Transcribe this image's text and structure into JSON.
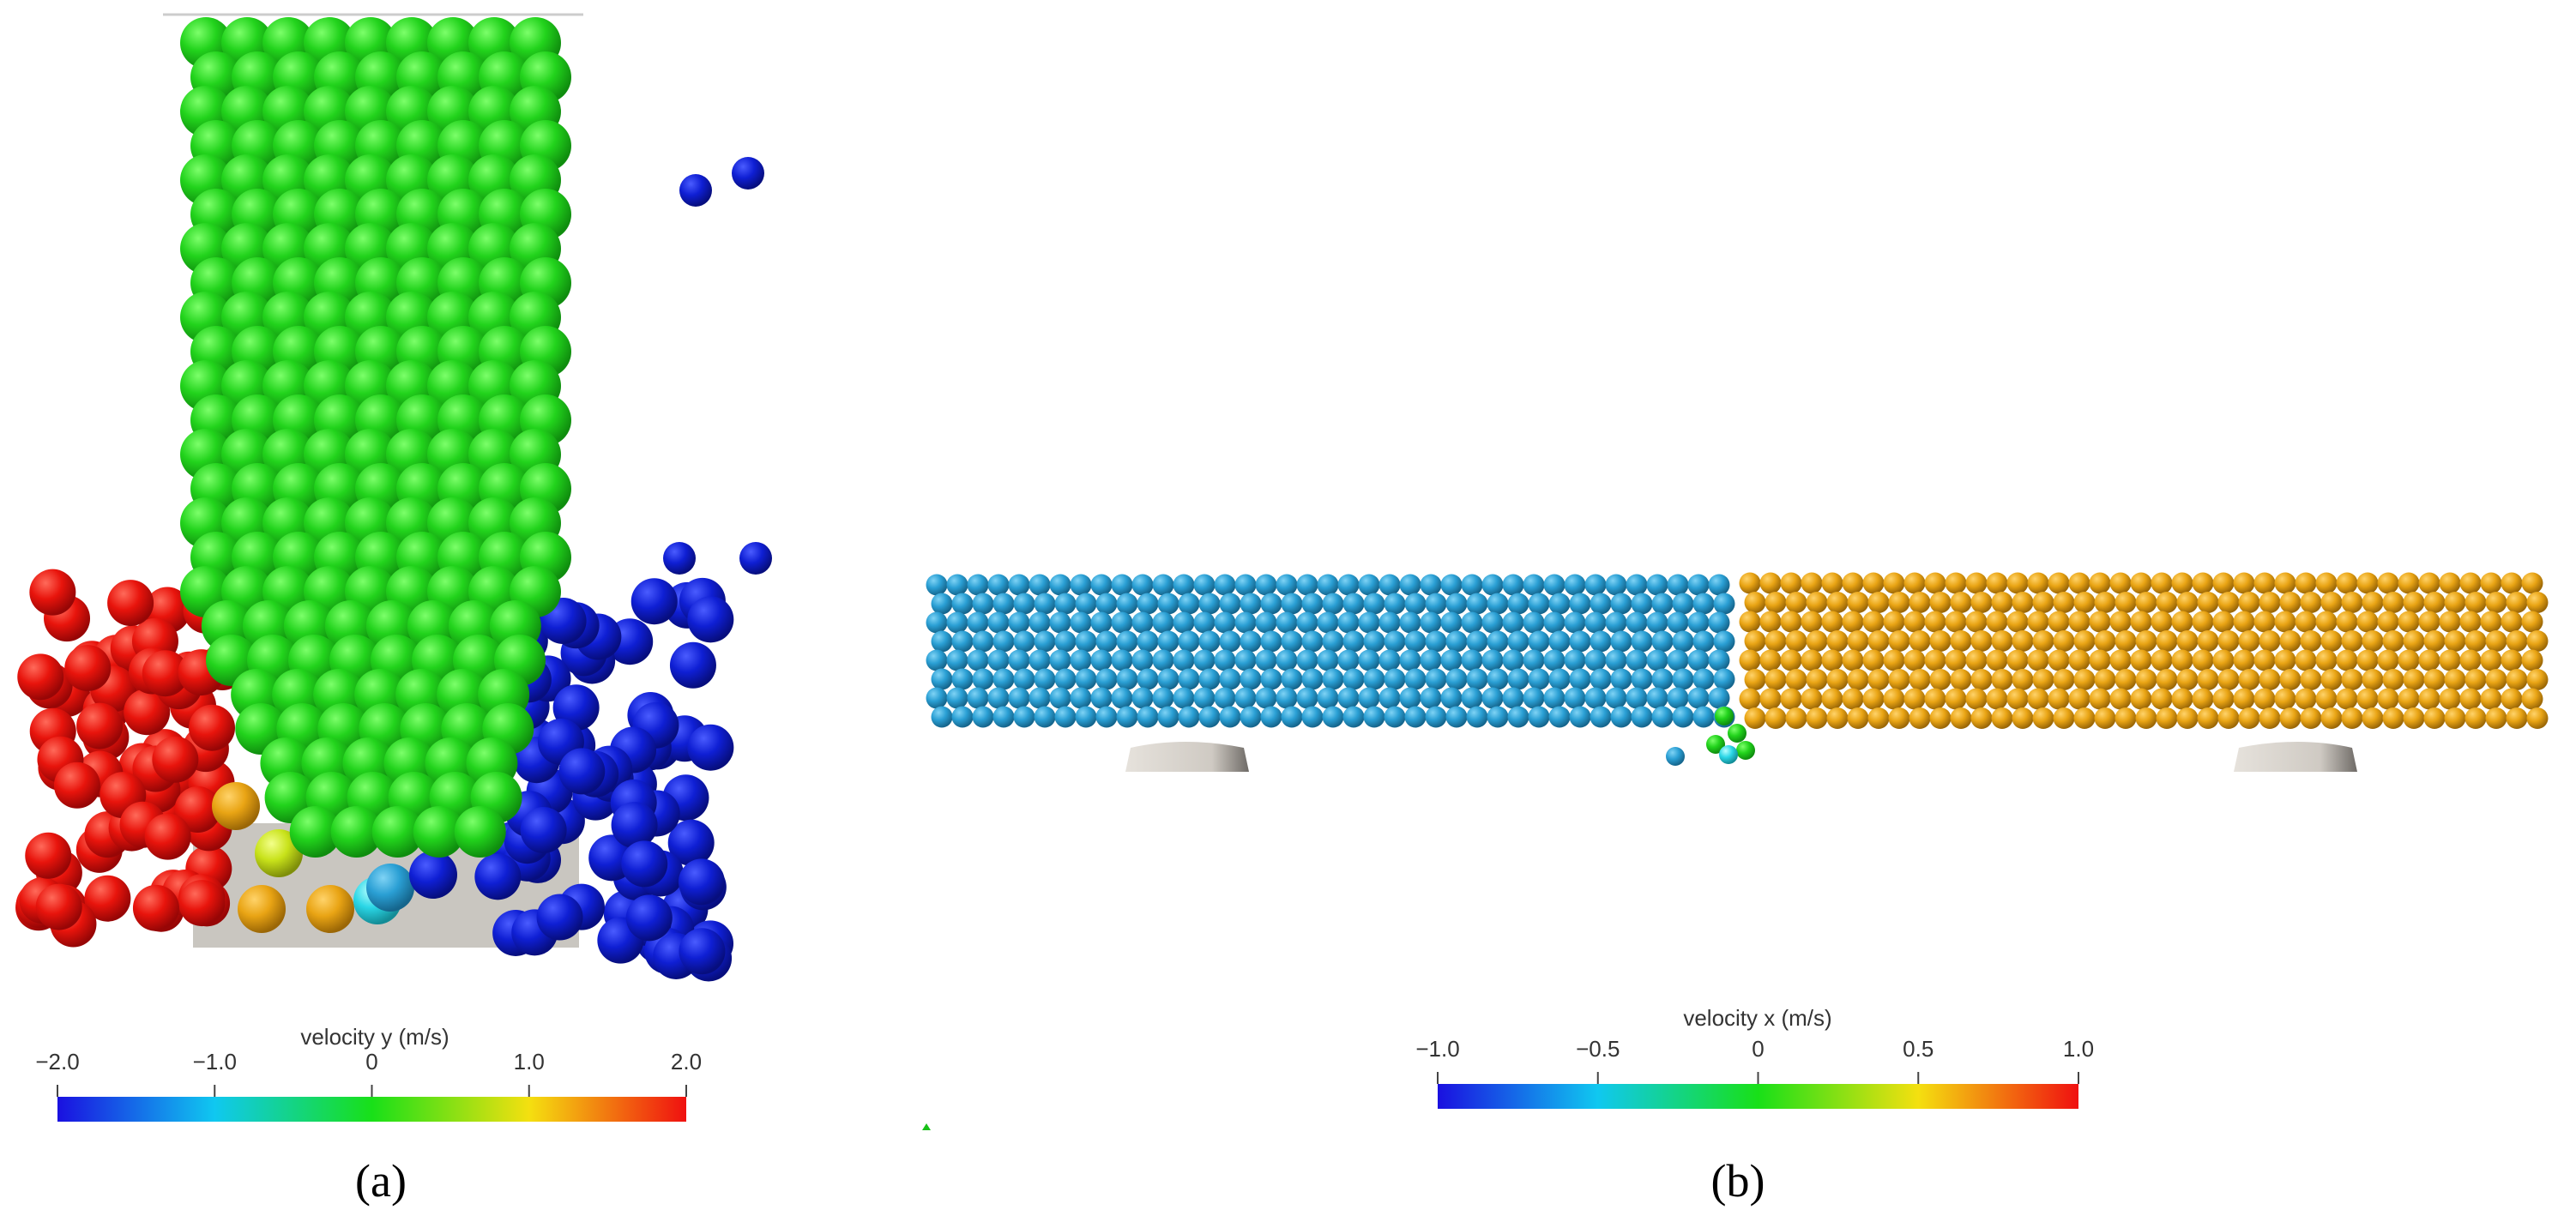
{
  "panels": [
    {
      "caption": "(a)",
      "colorbar": {
        "title": "velocity y (m/s)",
        "ticks": [
          {
            "value": -2,
            "label": "−2.0"
          },
          {
            "value": -1,
            "label": "−1.0"
          },
          0,
          {
            "value": 1,
            "label": "1.0"
          },
          {
            "value": 2,
            "label": "2.0"
          }
        ]
      }
    },
    {
      "caption": "(b)",
      "colorbar": {
        "title": "velocity x (m/s)",
        "ticks": [
          {
            "value": -1,
            "label": "−1.0"
          },
          {
            "value": -0.5,
            "label": "−0.5"
          },
          0,
          0.5,
          {
            "value": 1,
            "label": "1.0"
          }
        ]
      }
    }
  ]
}
